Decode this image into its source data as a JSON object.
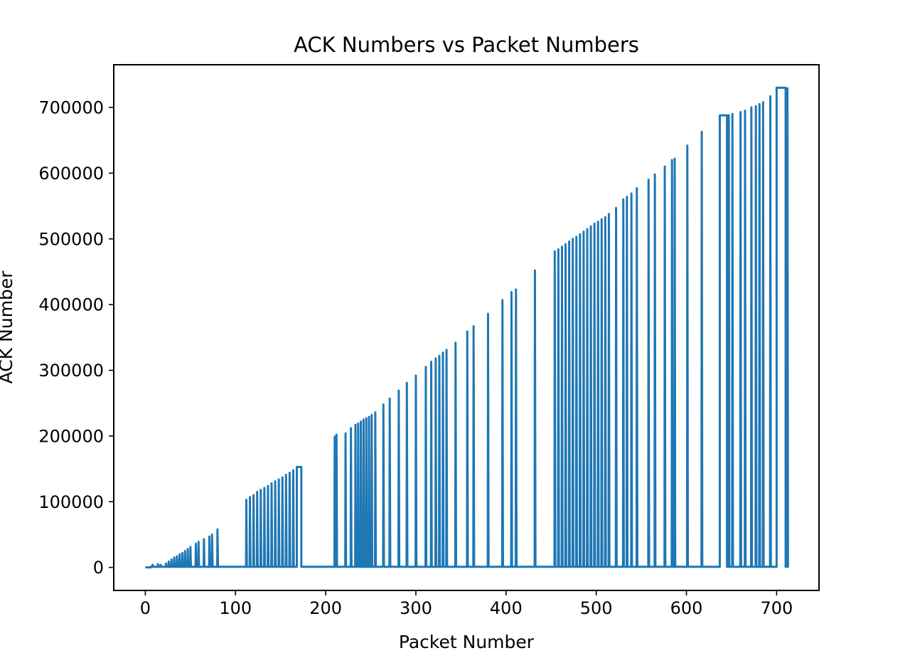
{
  "chart_data": {
    "type": "line",
    "title": "ACK Numbers vs Packet Numbers",
    "xlabel": "Packet Number",
    "ylabel": "ACK Number",
    "xlim": [
      -35,
      747
    ],
    "ylim": [
      -35000,
      765000
    ],
    "x_ticks": [
      0,
      100,
      200,
      300,
      400,
      500,
      600,
      700
    ],
    "y_ticks": [
      0,
      100000,
      200000,
      300000,
      400000,
      500000,
      600000,
      700000
    ],
    "grid": false,
    "legend": "none",
    "color": "#1f77b4",
    "series": [
      {
        "baseline": 1000,
        "flat_segments": [
          {
            "x": [
              0,
              6
            ],
            "y": [
              0,
              0
            ]
          },
          {
            "x": [
              168,
              173
            ],
            "y": [
              153000,
              153000
            ]
          },
          {
            "x": [
              637,
              645
            ],
            "y": [
              688000,
              688000
            ]
          },
          {
            "x": [
              700,
              710
            ],
            "y": [
              730000,
              730000
            ]
          }
        ],
        "spikes": [
          {
            "x": 8,
            "y": 4000
          },
          {
            "x": 14,
            "y": 5000
          },
          {
            "x": 17,
            "y": 4000
          },
          {
            "x": 23,
            "y": 6000
          },
          {
            "x": 26,
            "y": 9000
          },
          {
            "x": 29,
            "y": 12000
          },
          {
            "x": 32,
            "y": 15000
          },
          {
            "x": 35,
            "y": 17000
          },
          {
            "x": 38,
            "y": 20000
          },
          {
            "x": 41,
            "y": 22000
          },
          {
            "x": 44,
            "y": 25000
          },
          {
            "x": 47,
            "y": 28000
          },
          {
            "x": 50,
            "y": 31000
          },
          {
            "x": 56,
            "y": 36000
          },
          {
            "x": 59,
            "y": 39000
          },
          {
            "x": 65,
            "y": 43000
          },
          {
            "x": 71,
            "y": 47000
          },
          {
            "x": 74,
            "y": 50000
          },
          {
            "x": 80,
            "y": 58000
          },
          {
            "x": 112,
            "y": 103000
          },
          {
            "x": 116,
            "y": 107000
          },
          {
            "x": 120,
            "y": 110000
          },
          {
            "x": 124,
            "y": 115000
          },
          {
            "x": 128,
            "y": 118000
          },
          {
            "x": 132,
            "y": 121000
          },
          {
            "x": 136,
            "y": 124000
          },
          {
            "x": 140,
            "y": 128000
          },
          {
            "x": 144,
            "y": 131000
          },
          {
            "x": 148,
            "y": 134000
          },
          {
            "x": 152,
            "y": 137000
          },
          {
            "x": 156,
            "y": 141000
          },
          {
            "x": 160,
            "y": 144000
          },
          {
            "x": 164,
            "y": 148000
          },
          {
            "x": 210,
            "y": 199000
          },
          {
            "x": 212,
            "y": 202000
          },
          {
            "x": 222,
            "y": 204000
          },
          {
            "x": 228,
            "y": 212000
          },
          {
            "x": 233,
            "y": 217000
          },
          {
            "x": 236,
            "y": 219000
          },
          {
            "x": 239,
            "y": 222000
          },
          {
            "x": 242,
            "y": 225000
          },
          {
            "x": 245,
            "y": 227000
          },
          {
            "x": 248,
            "y": 229000
          },
          {
            "x": 251,
            "y": 232000
          },
          {
            "x": 255,
            "y": 236000
          },
          {
            "x": 264,
            "y": 248000
          },
          {
            "x": 271,
            "y": 257000
          },
          {
            "x": 281,
            "y": 269000
          },
          {
            "x": 290,
            "y": 281000
          },
          {
            "x": 300,
            "y": 292000
          },
          {
            "x": 311,
            "y": 305000
          },
          {
            "x": 317,
            "y": 313000
          },
          {
            "x": 322,
            "y": 318000
          },
          {
            "x": 326,
            "y": 322000
          },
          {
            "x": 330,
            "y": 327000
          },
          {
            "x": 334,
            "y": 331000
          },
          {
            "x": 344,
            "y": 342000
          },
          {
            "x": 357,
            "y": 359000
          },
          {
            "x": 364,
            "y": 367000
          },
          {
            "x": 380,
            "y": 386000
          },
          {
            "x": 396,
            "y": 407000
          },
          {
            "x": 406,
            "y": 419000
          },
          {
            "x": 411,
            "y": 423000
          },
          {
            "x": 432,
            "y": 452000
          },
          {
            "x": 454,
            "y": 481000
          },
          {
            "x": 458,
            "y": 484000
          },
          {
            "x": 462,
            "y": 488000
          },
          {
            "x": 466,
            "y": 492000
          },
          {
            "x": 470,
            "y": 496000
          },
          {
            "x": 474,
            "y": 500000
          },
          {
            "x": 478,
            "y": 503000
          },
          {
            "x": 482,
            "y": 507000
          },
          {
            "x": 486,
            "y": 511000
          },
          {
            "x": 490,
            "y": 515000
          },
          {
            "x": 494,
            "y": 519000
          },
          {
            "x": 498,
            "y": 523000
          },
          {
            "x": 502,
            "y": 526000
          },
          {
            "x": 506,
            "y": 530000
          },
          {
            "x": 510,
            "y": 533000
          },
          {
            "x": 514,
            "y": 538000
          },
          {
            "x": 522,
            "y": 547000
          },
          {
            "x": 530,
            "y": 560000
          },
          {
            "x": 534,
            "y": 564000
          },
          {
            "x": 539,
            "y": 569000
          },
          {
            "x": 545,
            "y": 577000
          },
          {
            "x": 558,
            "y": 590000
          },
          {
            "x": 565,
            "y": 598000
          },
          {
            "x": 576,
            "y": 610000
          },
          {
            "x": 584,
            "y": 620000
          },
          {
            "x": 587,
            "y": 622000
          },
          {
            "x": 601,
            "y": 642000
          },
          {
            "x": 617,
            "y": 663000
          },
          {
            "x": 647,
            "y": 688000
          },
          {
            "x": 651,
            "y": 690000
          },
          {
            "x": 660,
            "y": 693000
          },
          {
            "x": 665,
            "y": 695000
          },
          {
            "x": 672,
            "y": 700000
          },
          {
            "x": 677,
            "y": 702000
          },
          {
            "x": 681,
            "y": 705000
          },
          {
            "x": 685,
            "y": 708000
          },
          {
            "x": 693,
            "y": 717000
          },
          {
            "x": 712,
            "y": 729000
          }
        ],
        "end": {
          "x": 712,
          "y": 1000
        }
      }
    ]
  }
}
